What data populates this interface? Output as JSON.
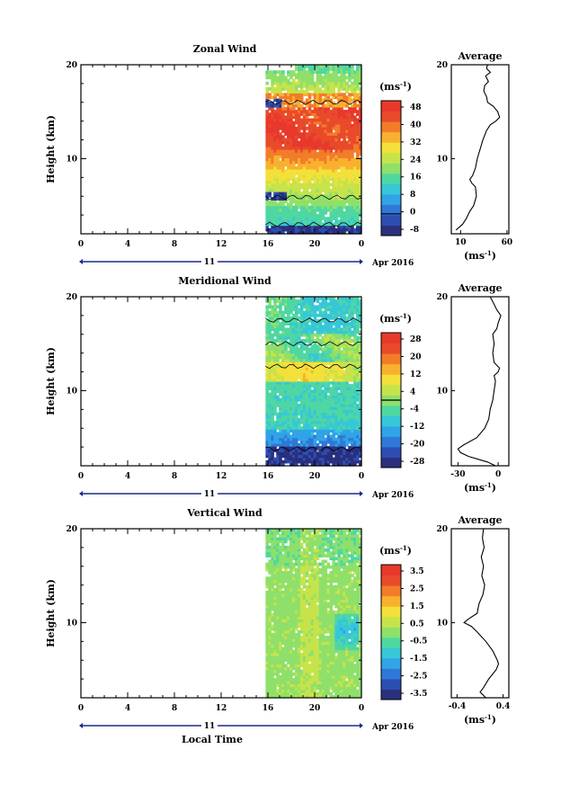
{
  "colors": {
    "zonal": [
      "#2b2f7e",
      "#2d4fb2",
      "#2f78d8",
      "#30a4e6",
      "#36c7d8",
      "#4fd7a2",
      "#8ee06a",
      "#c7e34a",
      "#f4e03a",
      "#f8b12e",
      "#f27c2a",
      "#e94a2b",
      "#e8392c"
    ],
    "meridional": [
      "#2b2f7e",
      "#2d4fb2",
      "#2f78d8",
      "#30a4e6",
      "#36c7d8",
      "#4fd7a2",
      "#8ee06a",
      "#c7e34a",
      "#f4e03a",
      "#f8b12e",
      "#f27c2a",
      "#e94a2b",
      "#e8392c"
    ],
    "vertical": [
      "#2b2f7e",
      "#2d4fb2",
      "#2f78d8",
      "#30a4e6",
      "#36c7d8",
      "#4fd7a2",
      "#8ee06a",
      "#c7e34a",
      "#f4e03a",
      "#f8b12e",
      "#f27c2a",
      "#e94a2b",
      "#e8392c"
    ]
  },
  "chart_data": [
    {
      "type": "heatmap",
      "title": "Zonal Wind",
      "ylabel": "Height (km)",
      "xlabel": "",
      "x_ticks": [
        "0",
        "4",
        "8",
        "12",
        "16",
        "20",
        "0"
      ],
      "y_ticks": [
        "20",
        "10"
      ],
      "ylim": [
        2,
        20
      ],
      "date_day": "11",
      "date_label": "Apr 2016",
      "data_start_hour": 15.8,
      "colorbar": {
        "unit_base": "(ms",
        "unit_exp": "-1",
        "unit_close": ")",
        "ticks": [
          "48",
          "40",
          "32",
          "24",
          "16",
          "8",
          "0",
          "-8"
        ],
        "range": [
          -10,
          52
        ],
        "contour_level": 0
      },
      "field": {
        "type": "zonal"
      },
      "average": {
        "title": "Average",
        "x_ticks": [
          "10",
          "60"
        ],
        "xlim": [
          0,
          62
        ],
        "unit_base": "(ms",
        "unit_exp": "-1",
        "unit_close": ")",
        "profile": [
          [
            2.4,
            5
          ],
          [
            3,
            12
          ],
          [
            3.6,
            16
          ],
          [
            4.4,
            20
          ],
          [
            5,
            24
          ],
          [
            6,
            27
          ],
          [
            7,
            26
          ],
          [
            7.4,
            22
          ],
          [
            7.8,
            20
          ],
          [
            8.2,
            23
          ],
          [
            9,
            26
          ],
          [
            10,
            28
          ],
          [
            11,
            31
          ],
          [
            12,
            34
          ],
          [
            13,
            38
          ],
          [
            13.6,
            42
          ],
          [
            14,
            48
          ],
          [
            14.4,
            52
          ],
          [
            15,
            50
          ],
          [
            15.6,
            45
          ],
          [
            16,
            39
          ],
          [
            16.6,
            38
          ],
          [
            17.2,
            35
          ],
          [
            17.8,
            36
          ],
          [
            18.2,
            40
          ],
          [
            18.8,
            37
          ],
          [
            19.2,
            42
          ],
          [
            19.6,
            38
          ],
          [
            20,
            39
          ]
        ]
      }
    },
    {
      "type": "heatmap",
      "title": "Meridional Wind",
      "ylabel": "Height (km)",
      "xlabel": "",
      "x_ticks": [
        "0",
        "4",
        "8",
        "12",
        "16",
        "20",
        "0"
      ],
      "y_ticks": [
        "20",
        "10"
      ],
      "ylim": [
        2,
        20
      ],
      "date_day": "11",
      "date_label": "Apr 2016",
      "data_start_hour": 15.8,
      "colorbar": {
        "unit_base": "(ms",
        "unit_exp": "-1",
        "unit_close": ")",
        "ticks": [
          "28",
          "20",
          "12",
          "4",
          "-4",
          "-12",
          "-20",
          "-28"
        ],
        "range": [
          -30,
          30
        ],
        "contour_level": 0
      },
      "field": {
        "type": "meridional"
      },
      "average": {
        "title": "Average",
        "x_ticks": [
          "-30",
          "0"
        ],
        "xlim": [
          -35,
          8
        ],
        "unit_base": "(ms",
        "unit_exp": "-1",
        "unit_close": ")",
        "profile": [
          [
            2,
            -2
          ],
          [
            2.4,
            -8
          ],
          [
            3,
            -22
          ],
          [
            3.4,
            -28
          ],
          [
            3.8,
            -30
          ],
          [
            4.2,
            -26
          ],
          [
            5,
            -16
          ],
          [
            6,
            -10
          ],
          [
            7,
            -7
          ],
          [
            8,
            -6
          ],
          [
            9,
            -4
          ],
          [
            10,
            -3
          ],
          [
            11,
            -2
          ],
          [
            11.6,
            -3
          ],
          [
            12,
            0
          ],
          [
            12.4,
            1
          ],
          [
            13,
            -3
          ],
          [
            14,
            -4
          ],
          [
            15,
            -3
          ],
          [
            16,
            -4
          ],
          [
            16.6,
            -1
          ],
          [
            17.2,
            0
          ],
          [
            18,
            2
          ],
          [
            18.6,
            -1
          ],
          [
            19.2,
            -3
          ],
          [
            20,
            -6
          ]
        ]
      }
    },
    {
      "type": "heatmap",
      "title": "Vertical Wind",
      "ylabel": "Height (km)",
      "xlabel": "Local Time",
      "x_ticks": [
        "0",
        "4",
        "8",
        "12",
        "16",
        "20",
        "0"
      ],
      "y_ticks": [
        "20",
        "10"
      ],
      "ylim": [
        2,
        20
      ],
      "date_day": "11",
      "date_label": "Apr 2016",
      "data_start_hour": 15.8,
      "colorbar": {
        "unit_base": "(ms",
        "unit_exp": "-1",
        "unit_close": ")",
        "ticks": [
          "3.5",
          "2.5",
          "1.5",
          "0.5",
          "-0.5",
          "-1.5",
          "-2.5",
          "-3.5"
        ],
        "range": [
          -4,
          4
        ],
        "contour_level": null
      },
      "field": {
        "type": "vertical"
      },
      "average": {
        "title": "Average",
        "x_ticks": [
          "-0.4",
          "0.4"
        ],
        "xlim": [
          -0.5,
          0.5
        ],
        "unit_base": "(ms",
        "unit_exp": "-1",
        "unit_close": ")",
        "profile": [
          [
            2,
            0.1
          ],
          [
            2.6,
            0.0
          ],
          [
            3,
            0.05
          ],
          [
            4,
            0.15
          ],
          [
            5,
            0.28
          ],
          [
            5.6,
            0.32
          ],
          [
            6,
            0.3
          ],
          [
            7,
            0.22
          ],
          [
            8,
            0.1
          ],
          [
            9,
            -0.05
          ],
          [
            9.6,
            -0.15
          ],
          [
            10,
            -0.28
          ],
          [
            10.4,
            -0.2
          ],
          [
            11,
            -0.05
          ],
          [
            12,
            -0.02
          ],
          [
            13,
            0.05
          ],
          [
            14,
            0.08
          ],
          [
            15,
            0.03
          ],
          [
            16,
            0.06
          ],
          [
            17,
            0.02
          ],
          [
            18,
            0.07
          ],
          [
            19,
            0.04
          ],
          [
            20,
            0.06
          ]
        ]
      }
    }
  ]
}
